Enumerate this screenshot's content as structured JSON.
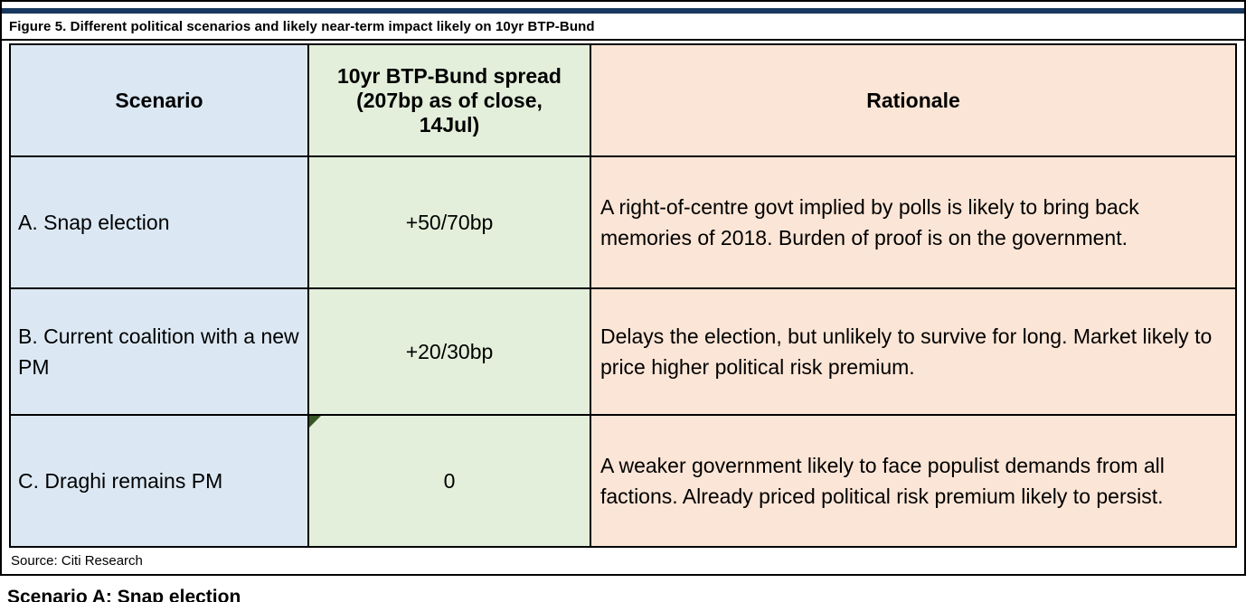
{
  "figure": {
    "caption": "Figure 5. Different political scenarios and likely near-term impact likely on 10yr BTP-Bund",
    "source": "Source: Citi Research",
    "next_heading_partial": "Scenario A: Snap election"
  },
  "table": {
    "headers": [
      "Scenario",
      "10yr BTP-Bund spread\n(207bp as of close,\n14Jul)",
      "Rationale"
    ],
    "rows": [
      {
        "scenario": "A. Snap election",
        "spread": "+50/70bp",
        "rationale": "A right-of-centre govt implied by polls is likely to bring back memories of 2018. Burden of proof is on the government."
      },
      {
        "scenario": "B. Current coalition with a new PM",
        "spread": "+20/30bp",
        "rationale": "Delays the election, but unlikely to survive for long. Market likely to price higher political risk premium."
      },
      {
        "scenario": "C. Draghi remains PM",
        "spread": "0",
        "rationale": "A weaker government likely to face populist demands from all factions. Already priced political risk premium likely to persist."
      }
    ]
  },
  "colors": {
    "accent-rule": "#17375e",
    "scenario-bg": "#dbe8f4",
    "spread-bg": "#e3efda",
    "rationale-bg": "#fbe5d6",
    "flag-green": "#375623"
  }
}
